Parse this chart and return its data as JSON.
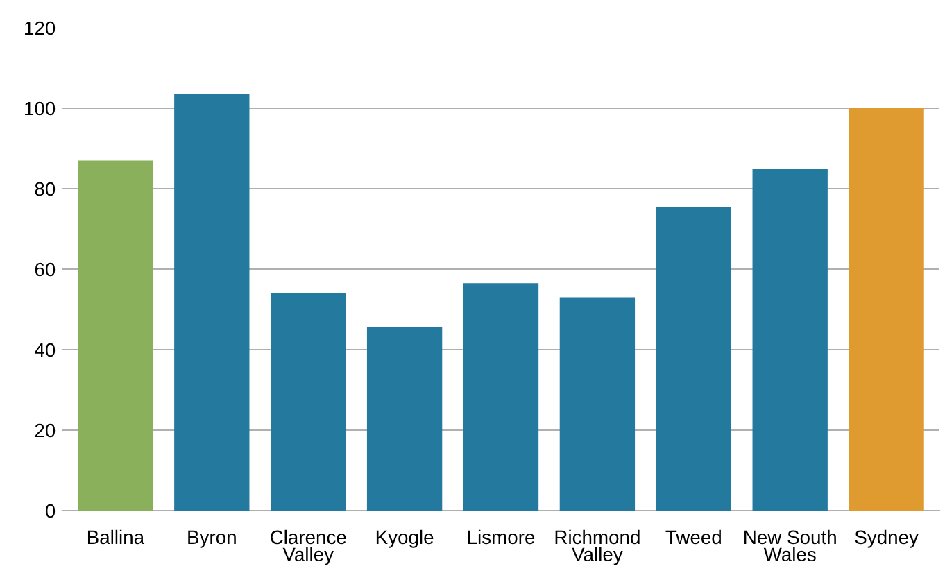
{
  "chart_data": {
    "type": "bar",
    "categories": [
      "Ballina",
      "Byron",
      "Clarence Valley",
      "Kyogle",
      "Lismore",
      "Richmond Valley",
      "Tweed",
      "New South Wales",
      "Sydney"
    ],
    "values": [
      87,
      103.5,
      54,
      45.5,
      56.5,
      53,
      75.5,
      85,
      100
    ],
    "colors": [
      "#8bb05c",
      "#23799e",
      "#23799e",
      "#23799e",
      "#23799e",
      "#23799e",
      "#23799e",
      "#23799e",
      "#df9b30"
    ],
    "ylim": [
      0,
      120
    ],
    "yticks": [
      0,
      20,
      40,
      60,
      80,
      100,
      120
    ],
    "grid": "y",
    "legend": false
  }
}
